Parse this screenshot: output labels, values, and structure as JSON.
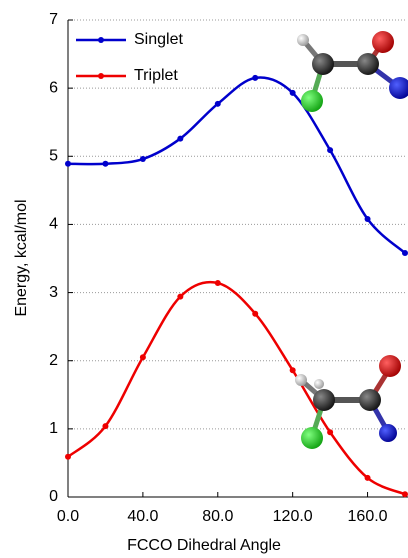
{
  "chart_data": {
    "type": "line",
    "x_label": "FCCO Dihedral Angle",
    "y_label": "Energy, kcal/mol",
    "x": [
      0,
      20,
      40,
      60,
      80,
      100,
      120,
      140,
      160,
      180
    ],
    "series": [
      {
        "name": "Singlet",
        "color": "#0000cc",
        "values": [
          4.89,
          4.89,
          4.96,
          5.26,
          5.77,
          6.15,
          5.93,
          5.09,
          4.08,
          3.58
        ]
      },
      {
        "name": "Triplet",
        "color": "#ee0000",
        "values": [
          0.59,
          1.04,
          2.05,
          2.94,
          3.14,
          2.69,
          1.86,
          0.95,
          0.28,
          0.04
        ]
      }
    ],
    "xlim": [
      0,
      180
    ],
    "xticks": [
      {
        "value": 0,
        "label": "0.0"
      },
      {
        "value": 40,
        "label": "40.0"
      },
      {
        "value": 80,
        "label": "80.0"
      },
      {
        "value": 120,
        "label": "120.0"
      },
      {
        "value": 160,
        "label": "160.0"
      }
    ],
    "ylim": [
      0,
      7
    ],
    "yticks": [
      0,
      1,
      2,
      3,
      4,
      5,
      6,
      7
    ],
    "grid": true,
    "legend": "upper left"
  }
}
